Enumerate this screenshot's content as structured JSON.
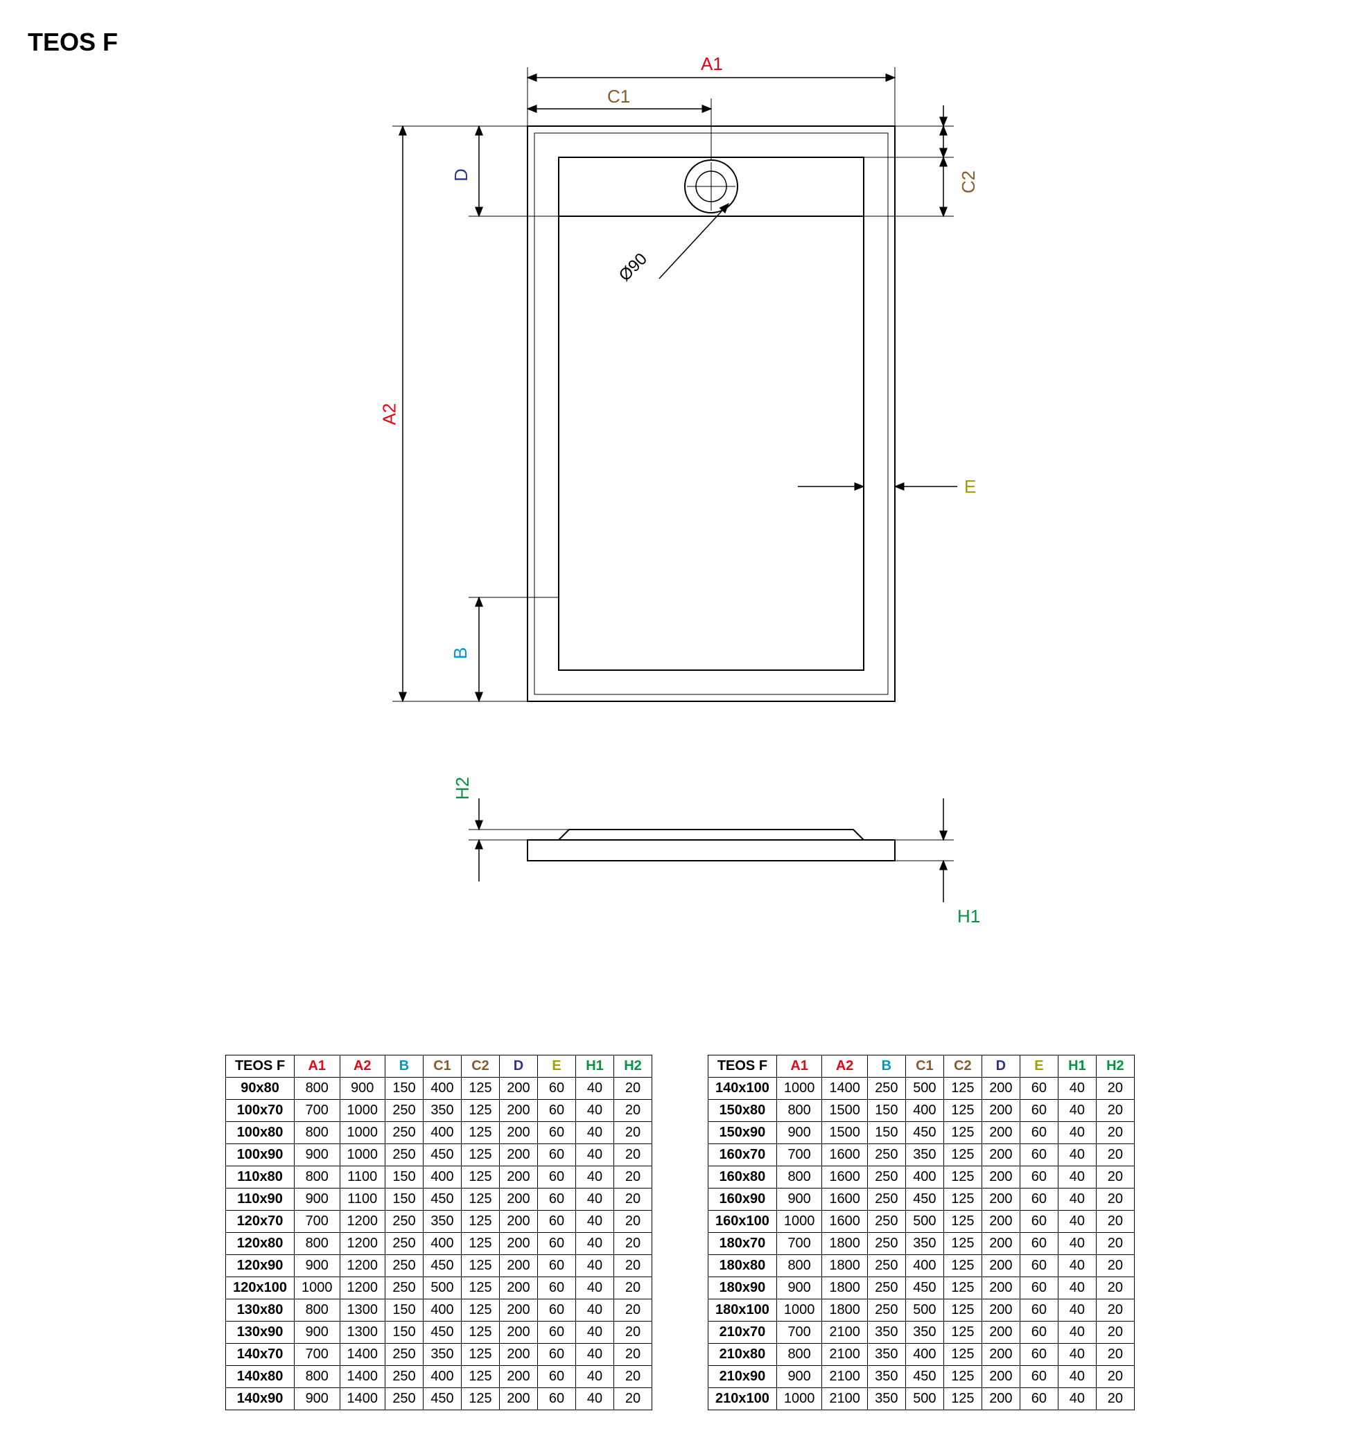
{
  "title": "TEOS F",
  "colors": {
    "A": "#e30613",
    "B": "#0099cc",
    "C": "#8b5a2b",
    "D": "#2e3192",
    "E": "#a0a000",
    "H": "#009640",
    "line": "#000000",
    "bg": "#ffffff"
  },
  "diagram": {
    "labels": {
      "A1": "A1",
      "A2": "A2",
      "B": "B",
      "C1": "C1",
      "C2": "C2",
      "D": "D",
      "E": "E",
      "H1": "H1",
      "H2": "H2",
      "diameter": "Ø90"
    }
  },
  "table": {
    "headers": [
      "TEOS F",
      "A1",
      "A2",
      "B",
      "C1",
      "C2",
      "D",
      "E",
      "H1",
      "H2"
    ],
    "header_colors": [
      "#000000",
      "#e30613",
      "#e30613",
      "#0099cc",
      "#8b5a2b",
      "#8b5a2b",
      "#2e3192",
      "#a0a000",
      "#009640",
      "#009640"
    ],
    "left_rows": [
      [
        "90x80",
        "800",
        "900",
        "150",
        "400",
        "125",
        "200",
        "60",
        "40",
        "20"
      ],
      [
        "100x70",
        "700",
        "1000",
        "250",
        "350",
        "125",
        "200",
        "60",
        "40",
        "20"
      ],
      [
        "100x80",
        "800",
        "1000",
        "250",
        "400",
        "125",
        "200",
        "60",
        "40",
        "20"
      ],
      [
        "100x90",
        "900",
        "1000",
        "250",
        "450",
        "125",
        "200",
        "60",
        "40",
        "20"
      ],
      [
        "110x80",
        "800",
        "1100",
        "150",
        "400",
        "125",
        "200",
        "60",
        "40",
        "20"
      ],
      [
        "110x90",
        "900",
        "1100",
        "150",
        "450",
        "125",
        "200",
        "60",
        "40",
        "20"
      ],
      [
        "120x70",
        "700",
        "1200",
        "250",
        "350",
        "125",
        "200",
        "60",
        "40",
        "20"
      ],
      [
        "120x80",
        "800",
        "1200",
        "250",
        "400",
        "125",
        "200",
        "60",
        "40",
        "20"
      ],
      [
        "120x90",
        "900",
        "1200",
        "250",
        "450",
        "125",
        "200",
        "60",
        "40",
        "20"
      ],
      [
        "120x100",
        "1000",
        "1200",
        "250",
        "500",
        "125",
        "200",
        "60",
        "40",
        "20"
      ],
      [
        "130x80",
        "800",
        "1300",
        "150",
        "400",
        "125",
        "200",
        "60",
        "40",
        "20"
      ],
      [
        "130x90",
        "900",
        "1300",
        "150",
        "450",
        "125",
        "200",
        "60",
        "40",
        "20"
      ],
      [
        "140x70",
        "700",
        "1400",
        "250",
        "350",
        "125",
        "200",
        "60",
        "40",
        "20"
      ],
      [
        "140x80",
        "800",
        "1400",
        "250",
        "400",
        "125",
        "200",
        "60",
        "40",
        "20"
      ],
      [
        "140x90",
        "900",
        "1400",
        "250",
        "450",
        "125",
        "200",
        "60",
        "40",
        "20"
      ]
    ],
    "right_rows": [
      [
        "140x100",
        "1000",
        "1400",
        "250",
        "500",
        "125",
        "200",
        "60",
        "40",
        "20"
      ],
      [
        "150x80",
        "800",
        "1500",
        "150",
        "400",
        "125",
        "200",
        "60",
        "40",
        "20"
      ],
      [
        "150x90",
        "900",
        "1500",
        "150",
        "450",
        "125",
        "200",
        "60",
        "40",
        "20"
      ],
      [
        "160x70",
        "700",
        "1600",
        "250",
        "350",
        "125",
        "200",
        "60",
        "40",
        "20"
      ],
      [
        "160x80",
        "800",
        "1600",
        "250",
        "400",
        "125",
        "200",
        "60",
        "40",
        "20"
      ],
      [
        "160x90",
        "900",
        "1600",
        "250",
        "450",
        "125",
        "200",
        "60",
        "40",
        "20"
      ],
      [
        "160x100",
        "1000",
        "1600",
        "250",
        "500",
        "125",
        "200",
        "60",
        "40",
        "20"
      ],
      [
        "180x70",
        "700",
        "1800",
        "250",
        "350",
        "125",
        "200",
        "60",
        "40",
        "20"
      ],
      [
        "180x80",
        "800",
        "1800",
        "250",
        "400",
        "125",
        "200",
        "60",
        "40",
        "20"
      ],
      [
        "180x90",
        "900",
        "1800",
        "250",
        "450",
        "125",
        "200",
        "60",
        "40",
        "20"
      ],
      [
        "180x100",
        "1000",
        "1800",
        "250",
        "500",
        "125",
        "200",
        "60",
        "40",
        "20"
      ],
      [
        "210x70",
        "700",
        "2100",
        "350",
        "350",
        "125",
        "200",
        "60",
        "40",
        "20"
      ],
      [
        "210x80",
        "800",
        "2100",
        "350",
        "400",
        "125",
        "200",
        "60",
        "40",
        "20"
      ],
      [
        "210x90",
        "900",
        "2100",
        "350",
        "450",
        "125",
        "200",
        "60",
        "40",
        "20"
      ],
      [
        "210x100",
        "1000",
        "2100",
        "350",
        "500",
        "125",
        "200",
        "60",
        "40",
        "20"
      ]
    ]
  }
}
